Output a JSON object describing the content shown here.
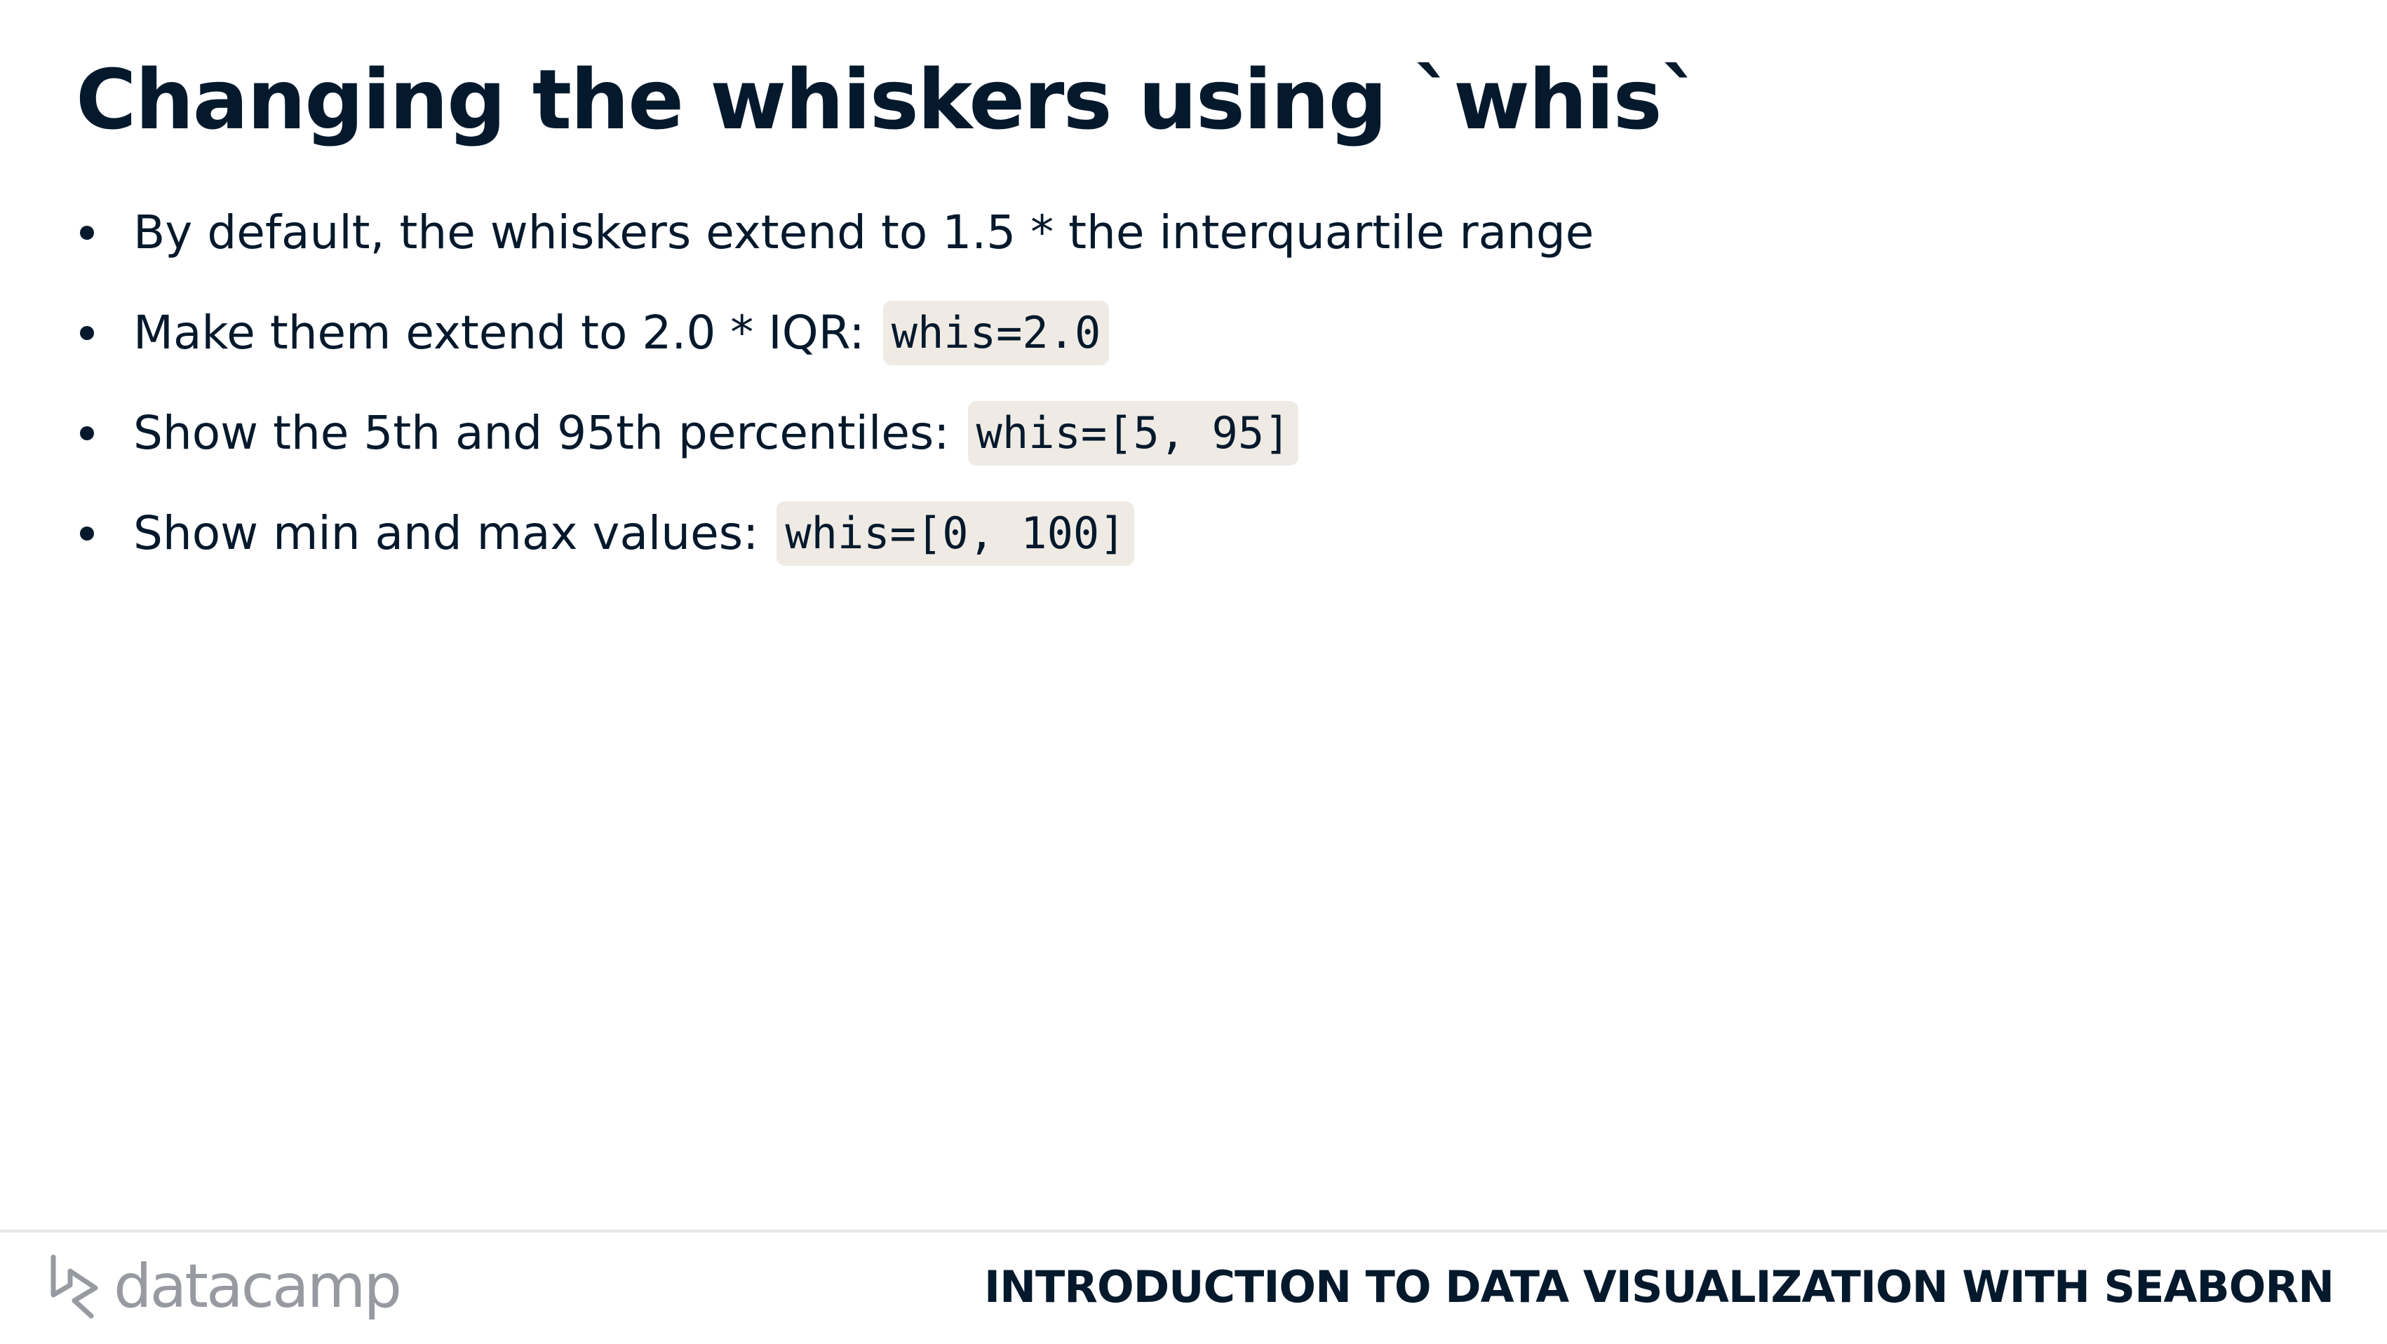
{
  "slide": {
    "title": "Changing the whiskers using `whis`",
    "bullets": [
      {
        "text": "By default, the whiskers extend to 1.5 * the interquartile range",
        "code": ""
      },
      {
        "text": "Make them extend to 2.0 * IQR:",
        "code": "whis=2.0"
      },
      {
        "text": "Show the 5th and 95th percentiles:",
        "code": "whis=[5, 95]"
      },
      {
        "text": "Show min and max values:",
        "code": "whis=[0, 100]"
      }
    ]
  },
  "footer": {
    "logo_text": "datacamp",
    "course_title": "INTRODUCTION TO DATA VISUALIZATION WITH SEABORN"
  },
  "colors": {
    "text": "#05192d",
    "code_background": "#efebe4",
    "logo_gray": "#979aa0",
    "rule": "#e5e6e8"
  },
  "icons": {
    "logo": "datacamp-logo-icon",
    "bullet": "bullet-dot-icon"
  }
}
